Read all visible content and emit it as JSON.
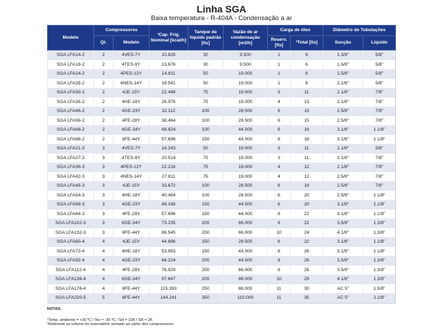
{
  "title": "Linha SGA",
  "subtitle": "Baixa temperatura - R-404A - Condensação a ar",
  "colors": {
    "header_bg": "#1d3a8a",
    "row_alt": "#e3e7f0"
  },
  "headers": {
    "modelo": "Modelo",
    "compressores": "Compressores",
    "qt": "Qt.",
    "comp_modelo": "Modelo",
    "cap": "¹Cap. Frig. Nominal [kcal/h]",
    "tanque": "Tanque de líquido padrão [lts]",
    "vazao": "Vazão de ar condensação [m3/h]",
    "carga": "Carga de óleo",
    "reserv": "Reserv. [lts]",
    "total": "²Total [lts]",
    "diametro": "Diâmetro de Tubulações",
    "succao": "Sucção",
    "liquido": "Líquido"
  },
  "rows": [
    [
      "SGA LFA14-2",
      "2",
      "4VES-7Y",
      "10.828",
      "30",
      "9.500",
      "1",
      "6",
      "1.3/8\"",
      "5/8\""
    ],
    [
      "SGA LFA18-2",
      "2",
      "4TES-9Y",
      "13.676",
      "30",
      "9.500",
      "1",
      "6",
      "1.5/8\"",
      "5/8\""
    ],
    [
      "SGA LFA24-2",
      "2",
      "4PES-12Y",
      "14.811",
      "50",
      "19.000",
      "1",
      "6",
      "1.5/8\"",
      "5/8\""
    ],
    [
      "SGA LFA28-2",
      "2",
      "4NES-14Y",
      "18.541",
      "50",
      "19.000",
      "1",
      "6",
      "2.1/8\"",
      "5/8\""
    ],
    [
      "SGA LFA30-2",
      "2",
      "4JE-15Y",
      "22.448",
      "75",
      "19.000",
      "3",
      "11",
      "2.1/8\"",
      "7/8\""
    ],
    [
      "SGA LFA36-2",
      "2",
      "4HE-18Y",
      "26.976",
      "75",
      "19.000",
      "4",
      "13",
      "2.1/8\"",
      "7/8\""
    ],
    [
      "SGA LFA46-2",
      "2",
      "4GE-23Y",
      "32.112",
      "100",
      "28.500",
      "6",
      "15",
      "2.5/8\"",
      "7/8\""
    ],
    [
      "SGA LFA56-2",
      "2",
      "4FE-28Y",
      "38.464",
      "100",
      "28.500",
      "6",
      "15",
      "2.5/8\"",
      "7/8\""
    ],
    [
      "SGA LFA68-2",
      "2",
      "6GE-34Y",
      "48.824",
      "100",
      "44.000",
      "6",
      "16",
      "3.1/8\"",
      "1.1/8\""
    ],
    [
      "SGA LFA88-2",
      "2",
      "6FE-44Y",
      "57.696",
      "150",
      "44.000",
      "8",
      "18",
      "3.1/8\"",
      "1.1/8\""
    ],
    [
      "SGA LFA21-3",
      "3",
      "4VES-7Y",
      "16.243",
      "50",
      "19.000",
      "3",
      "11",
      "2.1/8\"",
      "5/8\""
    ],
    [
      "SGA LFA27-3",
      "3",
      "4TES-9Y",
      "20.514",
      "75",
      "19.000",
      "3",
      "11",
      "2.1/8\"",
      "7/8\""
    ],
    [
      "SGA LFA36-3",
      "3",
      "4PES-12Y",
      "22.216",
      "75",
      "19.000",
      "4",
      "12",
      "2.1/8\"",
      "7/8\""
    ],
    [
      "SGA LFA42-3",
      "3",
      "4NES-14Y",
      "27.811",
      "75",
      "19.000",
      "4",
      "12",
      "2.5/8\"",
      "7/8\""
    ],
    [
      "SGA LFA45-3",
      "3",
      "4JE-15Y",
      "33.672",
      "100",
      "28.500",
      "6",
      "18",
      "2.5/8\"",
      "7/8\""
    ],
    [
      "SGA LFA54-3",
      "3",
      "4HE-18Y",
      "40.464",
      "100",
      "28.500",
      "6",
      "20",
      "2.5/8\"",
      "1.1/8\""
    ],
    [
      "SGA LFA69-3",
      "3",
      "4GE-23Y",
      "48.168",
      "150",
      "44.000",
      "6",
      "20",
      "3.1/8\"",
      "1.1/8\""
    ],
    [
      "SGA LFA84-3",
      "3",
      "4FE-28Y",
      "57.696",
      "150",
      "44.000",
      "8",
      "22",
      "3.1/8\"",
      "1.1/8\""
    ],
    [
      "SGA LFA102-3",
      "3",
      "6GE-34Y",
      "73.235",
      "200",
      "66.000",
      "8",
      "22",
      "3.5/8\"",
      "1.3/8\""
    ],
    [
      "SGA LFA132-3",
      "3",
      "6FE-44Y",
      "86.545",
      "200",
      "66.000",
      "10",
      "24",
      "4.1/8\"",
      "1.3/8\""
    ],
    [
      "SGA LFA60-4",
      "4",
      "4JE-15Y",
      "44.896",
      "150",
      "28.500",
      "6",
      "22",
      "3.1/8\"",
      "1.1/8\""
    ],
    [
      "SGA LFA72-4",
      "4",
      "4HE-18Y",
      "53.953",
      "150",
      "44.000",
      "8",
      "26",
      "3.1/8\"",
      "1.1/8\""
    ],
    [
      "SGA LFA92-4",
      "4",
      "4GE-23Y",
      "64.224",
      "200",
      "44.000",
      "8",
      "26",
      "3.5/8\"",
      "1.3/8\""
    ],
    [
      "SGA LFA112-4",
      "4",
      "4FE-28Y",
      "76.929",
      "200",
      "66.000",
      "8",
      "26",
      "3.5/8\"",
      "1.3/8\""
    ],
    [
      "SGA LFA136-4",
      "4",
      "6GE-34Y",
      "97.647",
      "200",
      "88.000",
      "10",
      "29",
      "4.1/8\"",
      "1.3/8\""
    ],
    [
      "SGA LFA176-4",
      "4",
      "6FE-44Y",
      "115.393",
      "250",
      "88.000",
      "11",
      "30",
      "AC 5\"",
      "1.5/8\""
    ],
    [
      "SGA LFA220-5",
      "5",
      "6FE-44Y",
      "144.241",
      "350",
      "110.000",
      "11",
      "35",
      "AC 5\"",
      "2.1/8\""
    ]
  ],
  "notes": {
    "heading": "NOTAS:",
    "note1": "¹Temp. ambiente = +35 ºC / Tev = -30 ºC / SH = 10K / SR = 2K",
    "note2": "²Referente ao volume do reservatório somado ao cárter dos compressores."
  }
}
